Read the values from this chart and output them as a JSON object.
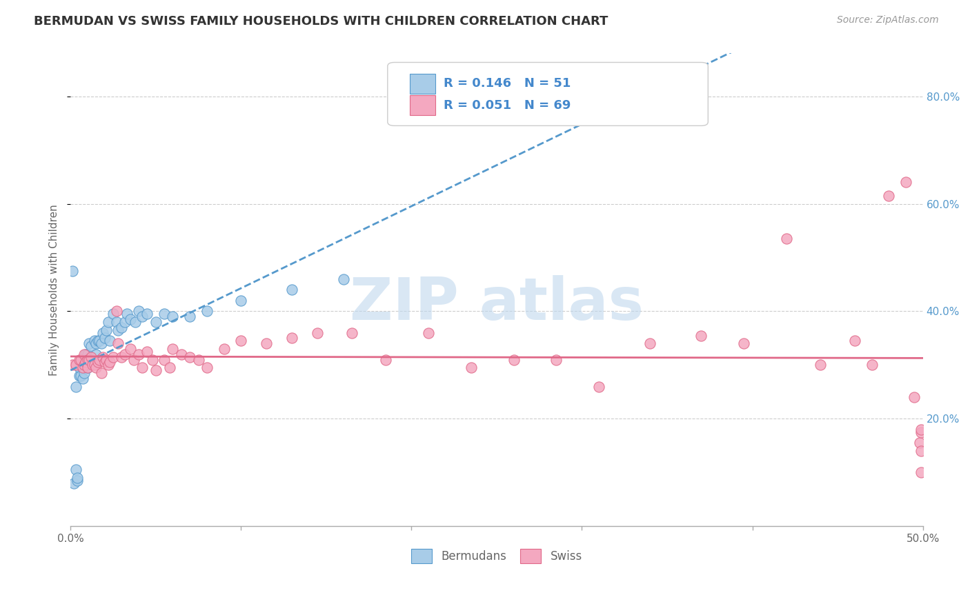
{
  "title": "BERMUDAN VS SWISS FAMILY HOUSEHOLDS WITH CHILDREN CORRELATION CHART",
  "source": "Source: ZipAtlas.com",
  "ylabel_label": "Family Households with Children",
  "xmin": 0.0,
  "xmax": 0.5,
  "ymin": 0.0,
  "ymax": 0.88,
  "yticks": [
    0.2,
    0.4,
    0.6,
    0.8
  ],
  "ytick_labels": [
    "20.0%",
    "40.0%",
    "60.0%",
    "80.0%"
  ],
  "xtick_positions": [
    0.0,
    0.1,
    0.2,
    0.3,
    0.4,
    0.5
  ],
  "xtick_labels": [
    "0.0%",
    "",
    "",
    "",
    "",
    "50.0%"
  ],
  "bermudan_face_color": "#a8cce8",
  "bermudan_edge_color": "#5599cc",
  "swiss_face_color": "#f4a8c0",
  "swiss_edge_color": "#e06888",
  "bermudan_line_color": "#5599cc",
  "swiss_line_color": "#e06888",
  "R_bermudan": "0.146",
  "N_bermudan": "51",
  "R_swiss": "0.051",
  "N_swiss": "69",
  "watermark": "ZIP atlas",
  "bermudan_x": [
    0.001,
    0.002,
    0.003,
    0.003,
    0.004,
    0.004,
    0.005,
    0.005,
    0.006,
    0.006,
    0.007,
    0.007,
    0.008,
    0.008,
    0.009,
    0.009,
    0.01,
    0.01,
    0.011,
    0.012,
    0.013,
    0.014,
    0.015,
    0.015,
    0.016,
    0.017,
    0.018,
    0.019,
    0.02,
    0.021,
    0.022,
    0.023,
    0.025,
    0.027,
    0.028,
    0.03,
    0.032,
    0.033,
    0.035,
    0.038,
    0.04,
    0.042,
    0.045,
    0.05,
    0.055,
    0.06,
    0.07,
    0.08,
    0.1,
    0.13,
    0.16
  ],
  "bermudan_y": [
    0.475,
    0.08,
    0.105,
    0.26,
    0.085,
    0.09,
    0.28,
    0.295,
    0.28,
    0.3,
    0.275,
    0.295,
    0.295,
    0.285,
    0.32,
    0.31,
    0.295,
    0.32,
    0.34,
    0.335,
    0.305,
    0.345,
    0.34,
    0.32,
    0.345,
    0.345,
    0.34,
    0.36,
    0.35,
    0.365,
    0.38,
    0.345,
    0.395,
    0.38,
    0.365,
    0.37,
    0.38,
    0.395,
    0.385,
    0.38,
    0.4,
    0.39,
    0.395,
    0.38,
    0.395,
    0.39,
    0.39,
    0.4,
    0.42,
    0.44,
    0.46
  ],
  "swiss_x": [
    0.001,
    0.003,
    0.005,
    0.006,
    0.007,
    0.008,
    0.008,
    0.009,
    0.01,
    0.01,
    0.011,
    0.012,
    0.013,
    0.014,
    0.015,
    0.016,
    0.017,
    0.018,
    0.019,
    0.02,
    0.021,
    0.022,
    0.023,
    0.025,
    0.027,
    0.028,
    0.03,
    0.032,
    0.035,
    0.037,
    0.04,
    0.042,
    0.045,
    0.048,
    0.05,
    0.055,
    0.058,
    0.06,
    0.065,
    0.07,
    0.075,
    0.08,
    0.09,
    0.1,
    0.115,
    0.13,
    0.145,
    0.165,
    0.185,
    0.21,
    0.235,
    0.26,
    0.285,
    0.31,
    0.34,
    0.37,
    0.395,
    0.42,
    0.44,
    0.46,
    0.47,
    0.48,
    0.49,
    0.495,
    0.498,
    0.499,
    0.499,
    0.499,
    0.499
  ],
  "swiss_y": [
    0.3,
    0.3,
    0.31,
    0.31,
    0.295,
    0.32,
    0.3,
    0.305,
    0.31,
    0.295,
    0.31,
    0.315,
    0.3,
    0.3,
    0.295,
    0.305,
    0.31,
    0.285,
    0.315,
    0.305,
    0.31,
    0.3,
    0.305,
    0.315,
    0.4,
    0.34,
    0.315,
    0.32,
    0.33,
    0.31,
    0.32,
    0.295,
    0.325,
    0.31,
    0.29,
    0.31,
    0.295,
    0.33,
    0.32,
    0.315,
    0.31,
    0.295,
    0.33,
    0.345,
    0.34,
    0.35,
    0.36,
    0.36,
    0.31,
    0.36,
    0.295,
    0.31,
    0.31,
    0.26,
    0.34,
    0.355,
    0.34,
    0.535,
    0.3,
    0.345,
    0.3,
    0.615,
    0.64,
    0.24,
    0.155,
    0.175,
    0.14,
    0.18,
    0.1
  ]
}
